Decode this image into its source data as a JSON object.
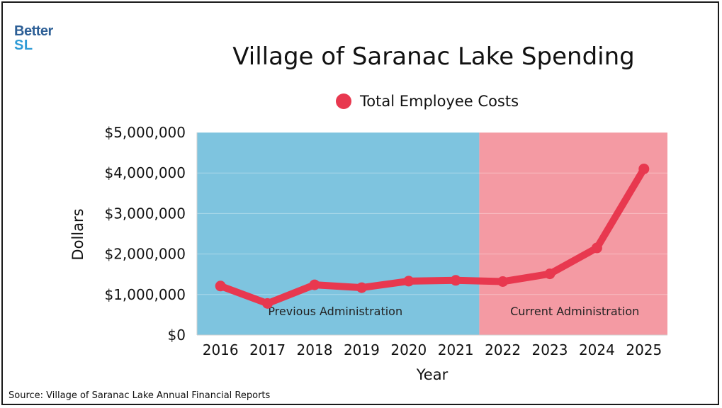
{
  "logo": {
    "line1": "Better",
    "line2": "SL"
  },
  "chart_data": {
    "type": "line",
    "title": "Village of Saranac Lake Spending",
    "xlabel": "Year",
    "ylabel": "Dollars",
    "ylim": [
      0,
      5000000
    ],
    "yticks": [
      0,
      1000000,
      2000000,
      3000000,
      4000000,
      5000000
    ],
    "ytick_labels": [
      "$0",
      "$1,000,000",
      "$2,000,000",
      "$3,000,000",
      "$4,000,000",
      "$5,000,000"
    ],
    "categories": [
      "2016",
      "2017",
      "2018",
      "2019",
      "2020",
      "2021",
      "2022",
      "2023",
      "2024",
      "2025"
    ],
    "series": [
      {
        "name": "Total Employee Costs",
        "color": "#e8384f",
        "values": [
          1210000,
          780000,
          1240000,
          1170000,
          1330000,
          1350000,
          1320000,
          1510000,
          2150000,
          4100000
        ]
      }
    ],
    "regions": [
      {
        "label": "Previous Administration",
        "from": "2016",
        "to": "2021",
        "color": "#7ec4df"
      },
      {
        "label": "Current Administration",
        "from": "2022",
        "to": "2025",
        "color": "#f49aa3"
      }
    ],
    "legend_position": "top-center"
  },
  "source": "Source: Village of Saranac Lake Annual Financial Reports"
}
